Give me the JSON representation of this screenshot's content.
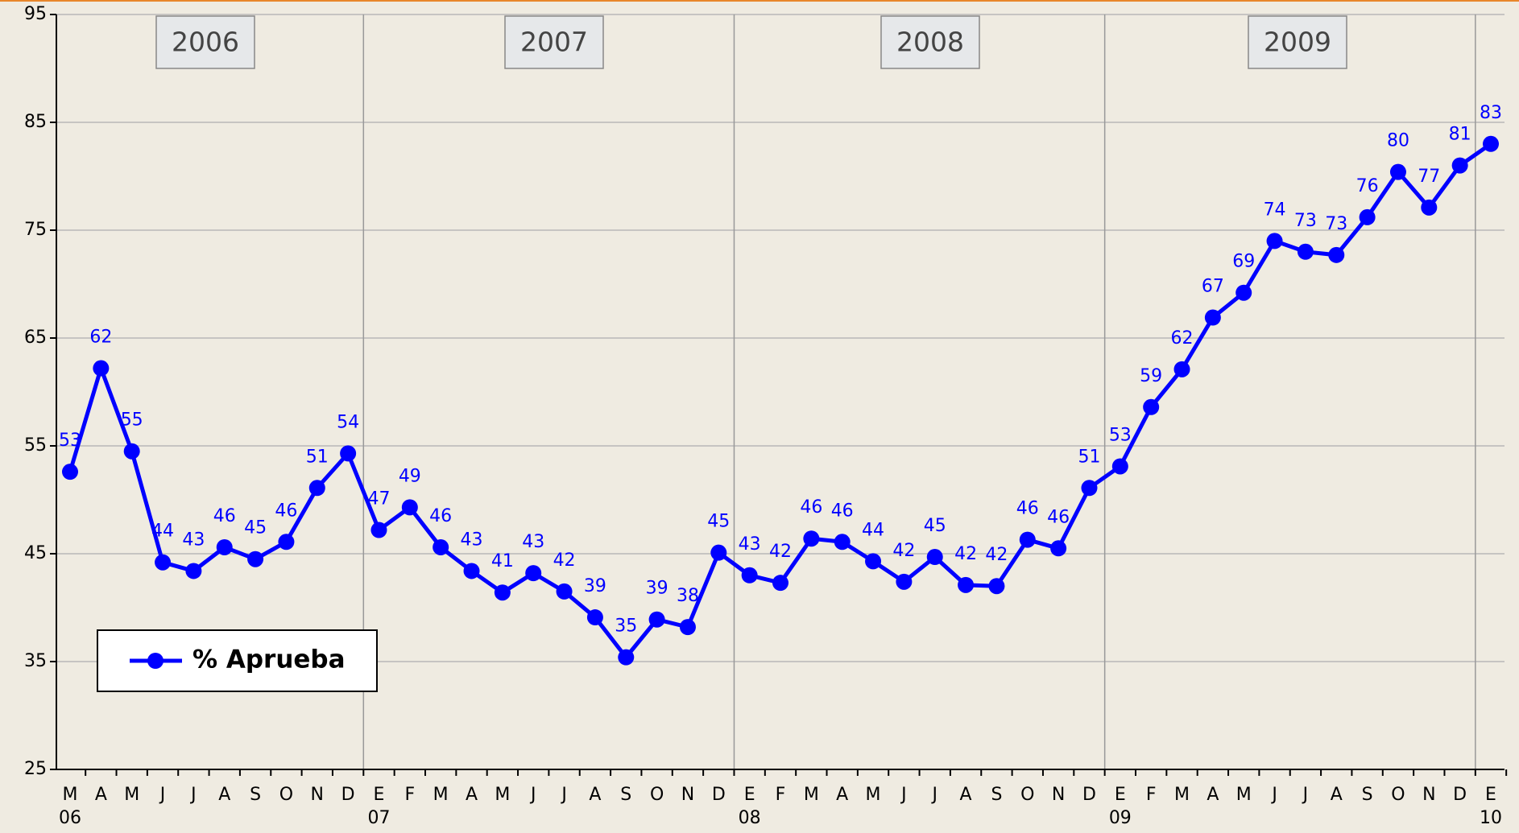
{
  "chart_data": {
    "type": "line",
    "categories": [
      "M",
      "A",
      "M",
      "J",
      "J",
      "A",
      "S",
      "O",
      "N",
      "D",
      "E",
      "F",
      "M",
      "A",
      "M",
      "J",
      "J",
      "A",
      "S",
      "O",
      "N",
      "D",
      "E",
      "F",
      "M",
      "A",
      "M",
      "J",
      "J",
      "A",
      "S",
      "O",
      "N",
      "D",
      "E",
      "F",
      "M",
      "A",
      "M",
      "J",
      "J",
      "A",
      "S",
      "O",
      "N",
      "D",
      "E"
    ],
    "year_row": [
      "06",
      null,
      null,
      null,
      null,
      null,
      null,
      null,
      null,
      null,
      "07",
      null,
      null,
      null,
      null,
      null,
      null,
      null,
      null,
      null,
      null,
      null,
      "08",
      null,
      null,
      null,
      null,
      null,
      null,
      null,
      null,
      null,
      null,
      null,
      "09",
      null,
      null,
      null,
      null,
      null,
      null,
      null,
      null,
      null,
      null,
      null,
      "10"
    ],
    "year_bands": [
      "2006",
      "2007",
      "2008",
      "2009"
    ],
    "series": [
      {
        "name": "% Aprueba",
        "color": "#0000ff",
        "values": [
          52.6,
          62.2,
          54.5,
          44.2,
          43.4,
          45.6,
          44.5,
          46.1,
          51.1,
          54.3,
          47.2,
          49.3,
          45.6,
          43.4,
          41.4,
          43.2,
          41.5,
          39.1,
          35.4,
          38.9,
          38.2,
          45.1,
          43.0,
          42.3,
          46.4,
          46.1,
          44.3,
          42.4,
          44.7,
          42.1,
          42.0,
          46.3,
          45.5,
          51.1,
          53.1,
          58.6,
          62.1,
          66.9,
          69.2,
          74.0,
          73.0,
          72.7,
          76.2,
          80.4,
          77.1,
          81.0,
          83.0
        ],
        "value_labels": [
          "53",
          "62",
          "55",
          "44",
          "43",
          "46",
          "45",
          "46",
          "51",
          "54",
          "47",
          "49",
          "46",
          "43",
          "41",
          "43",
          "42",
          "39",
          "35",
          "39",
          "38",
          "45",
          "43",
          "42",
          "46",
          "46",
          "44",
          "42",
          "45",
          "42",
          "42",
          "46",
          "46",
          "51",
          "53",
          "59",
          "62",
          "67",
          "69",
          "74",
          "73",
          "73",
          "76",
          "80",
          "77",
          "81",
          "83"
        ]
      }
    ],
    "ylim": [
      25,
      95
    ],
    "yticks": [
      25,
      35,
      45,
      55,
      65,
      75,
      85,
      95
    ],
    "grid": true,
    "legend": "lower left"
  }
}
